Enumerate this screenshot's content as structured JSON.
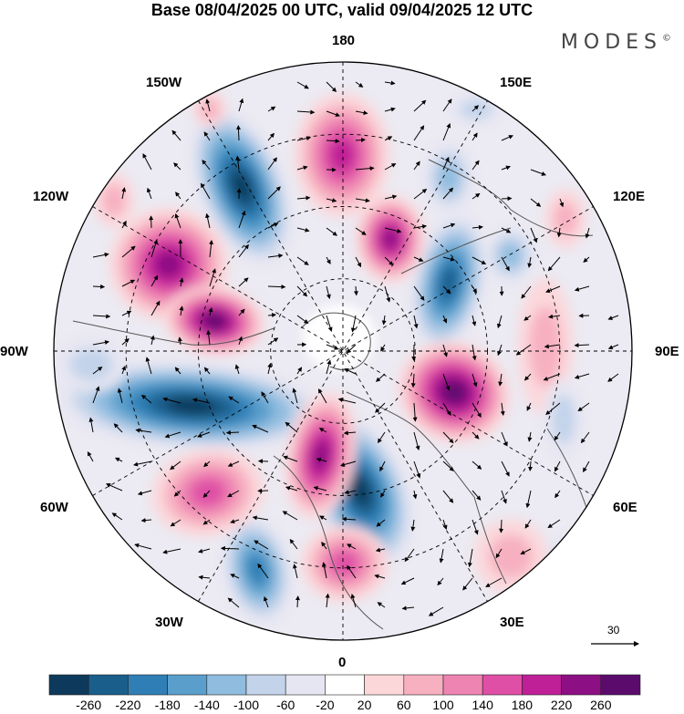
{
  "title": "Base 08/04/2025 00 UTC, valid 09/04/2025 12 UTC",
  "brand": {
    "text": "MODES",
    "mark": "©"
  },
  "longitude_labels": {
    "lon_180": "180",
    "lon_150w": "150W",
    "lon_150e": "150E",
    "lon_120w": "120W",
    "lon_120e": "120E",
    "lon_90w": "90W",
    "lon_90e": "90E",
    "lon_60w": "60W",
    "lon_60e": "60E",
    "lon_30w": "30W",
    "lon_30e": "30E",
    "lon_0": "0"
  },
  "reference_vector": {
    "label": "30"
  },
  "colorbar": {
    "colors": [
      "#0d3a5c",
      "#1a5e8c",
      "#2f7fb6",
      "#5a9fcc",
      "#8fbcdf",
      "#c2d3ea",
      "#e6e6f2",
      "#ffffff",
      "#fbd7da",
      "#f7b0c0",
      "#ee84b2",
      "#df4fa5",
      "#bf1f97",
      "#8c0f84",
      "#5a0b6c"
    ],
    "labels": [
      "-260",
      "-220",
      "-180",
      "-140",
      "-100",
      "-60",
      "-20",
      "20",
      "60",
      "100",
      "140",
      "180",
      "220",
      "260"
    ]
  }
}
